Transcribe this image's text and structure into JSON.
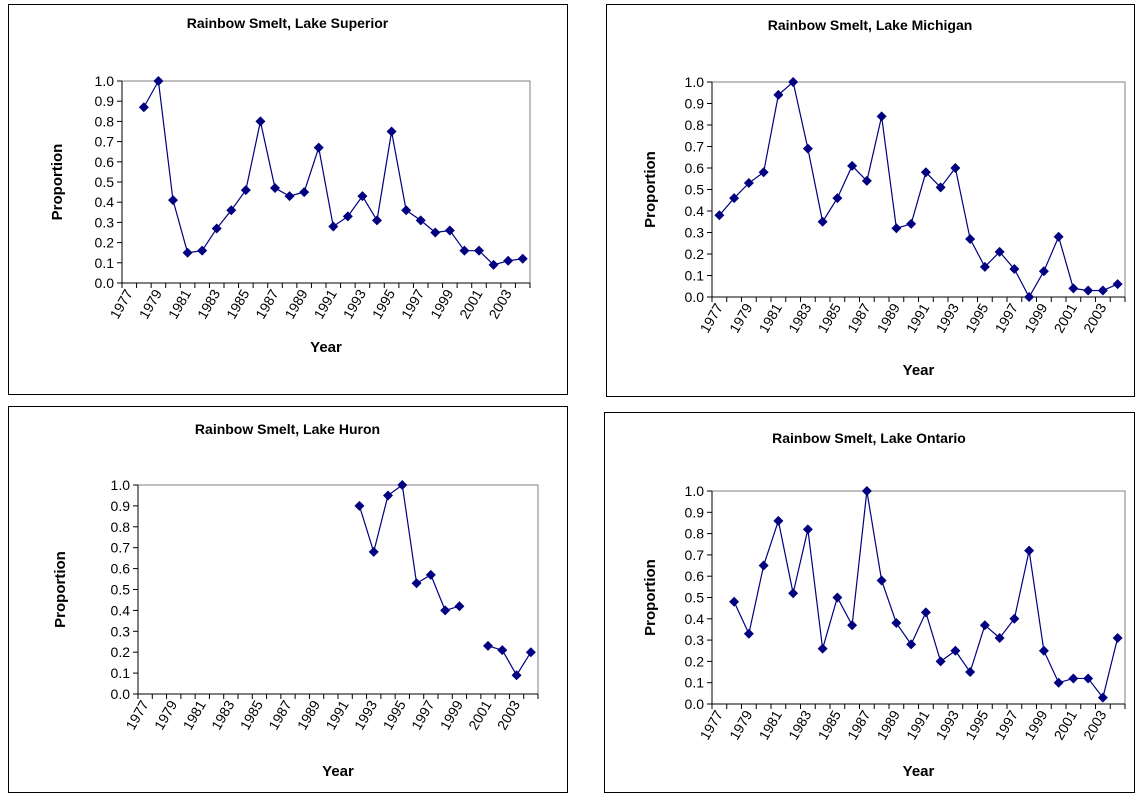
{
  "chart_data": [
    {
      "type": "line",
      "title": "Rainbow Smelt, Lake Superior",
      "x_label": "Year",
      "y_label": "Proportion",
      "categories": [
        "1977",
        null,
        "1979",
        null,
        "1981",
        null,
        "1983",
        null,
        "1985",
        null,
        "1987",
        null,
        "1989",
        null,
        "1991",
        null,
        "1993",
        null,
        "1995",
        null,
        "1997",
        null,
        "1999",
        null,
        "2001",
        null,
        "2003",
        null
      ],
      "series": [
        {
          "name": "Lake Superior",
          "color": "#000080",
          "values": [
            null,
            0.87,
            1.0,
            0.41,
            0.15,
            0.16,
            0.27,
            0.36,
            0.46,
            0.8,
            0.47,
            0.43,
            0.45,
            0.67,
            0.28,
            0.33,
            0.43,
            0.31,
            0.75,
            0.36,
            0.31,
            0.25,
            0.26,
            0.16,
            0.16,
            0.09,
            0.11,
            0.12
          ]
        }
      ],
      "ylim": [
        0,
        1
      ],
      "yticks": [
        {
          "value": 0,
          "label": "0.0"
        },
        0.1,
        0.2,
        0.3,
        0.4,
        0.5,
        0.6,
        0.7,
        0.8,
        0.9,
        {
          "value": 1,
          "label": "1.0"
        }
      ],
      "grid": false
    },
    {
      "type": "line",
      "title": "Rainbow Smelt, Lake Michigan",
      "x_label": "Year",
      "y_label": "Proportion",
      "categories": [
        "1977",
        null,
        "1979",
        null,
        "1981",
        null,
        "1983",
        null,
        "1985",
        null,
        "1987",
        null,
        "1989",
        null,
        "1991",
        null,
        "1993",
        null,
        "1995",
        null,
        "1997",
        null,
        "1999",
        null,
        "2001",
        null,
        "2003",
        null
      ],
      "series": [
        {
          "name": "Lake Michigan",
          "color": "#000080",
          "values": [
            0.38,
            0.46,
            0.53,
            0.58,
            0.94,
            1.0,
            0.69,
            0.35,
            0.46,
            0.61,
            0.54,
            0.84,
            0.32,
            0.34,
            0.58,
            0.51,
            0.6,
            0.27,
            0.14,
            0.21,
            0.13,
            0.0,
            0.12,
            0.28,
            0.04,
            0.03,
            0.03,
            0.06
          ]
        }
      ],
      "ylim": [
        0,
        1
      ],
      "yticks": [
        {
          "value": 0,
          "label": "0.0"
        },
        0.1,
        0.2,
        0.3,
        0.4,
        0.5,
        0.6,
        0.7,
        0.8,
        0.9,
        {
          "value": 1,
          "label": "1.0"
        }
      ],
      "grid": false
    },
    {
      "type": "line",
      "title": "Rainbow Smelt, Lake Huron",
      "x_label": "Year",
      "y_label": "Proportion",
      "categories": [
        "1977",
        null,
        "1979",
        null,
        "1981",
        null,
        "1983",
        null,
        "1985",
        null,
        "1987",
        null,
        "1989",
        null,
        "1991",
        null,
        "1993",
        null,
        "1995",
        null,
        "1997",
        null,
        "1999",
        null,
        "2001",
        null,
        "2003",
        null
      ],
      "series": [
        {
          "name": "Lake Huron",
          "color": "#000080",
          "values": [
            null,
            null,
            null,
            null,
            null,
            null,
            null,
            null,
            null,
            null,
            null,
            null,
            null,
            null,
            null,
            0.9,
            0.68,
            0.95,
            1.0,
            0.53,
            0.57,
            0.4,
            0.42,
            null,
            0.23,
            0.21,
            0.09,
            0.2
          ]
        }
      ],
      "ylim": [
        0,
        1
      ],
      "yticks": [
        {
          "value": 0,
          "label": "0.0"
        },
        0.1,
        0.2,
        0.3,
        0.4,
        0.5,
        0.6,
        0.7,
        0.8,
        0.9,
        {
          "value": 1,
          "label": "1.0"
        }
      ],
      "grid": false
    },
    {
      "type": "line",
      "title": "Rainbow Smelt, Lake Ontario",
      "x_label": "Year",
      "y_label": "Proportion",
      "categories": [
        "1977",
        null,
        "1979",
        null,
        "1981",
        null,
        "1983",
        null,
        "1985",
        null,
        "1987",
        null,
        "1989",
        null,
        "1991",
        null,
        "1993",
        null,
        "1995",
        null,
        "1997",
        null,
        "1999",
        null,
        "2001",
        null,
        "2003",
        null
      ],
      "series": [
        {
          "name": "Lake Ontario",
          "color": "#000080",
          "values": [
            null,
            0.48,
            0.33,
            0.65,
            0.86,
            0.52,
            0.82,
            0.26,
            0.5,
            0.37,
            1.0,
            0.58,
            0.38,
            0.28,
            0.43,
            0.2,
            0.25,
            0.15,
            0.37,
            0.31,
            0.4,
            0.72,
            0.25,
            0.1,
            0.12,
            0.12,
            0.03,
            0.31
          ]
        }
      ],
      "ylim": [
        0,
        1
      ],
      "yticks": [
        {
          "value": 0,
          "label": "0.0"
        },
        0.1,
        0.2,
        0.3,
        0.4,
        0.5,
        0.6,
        0.7,
        0.8,
        0.9,
        {
          "value": 1,
          "label": "1.0"
        }
      ],
      "grid": false
    }
  ]
}
